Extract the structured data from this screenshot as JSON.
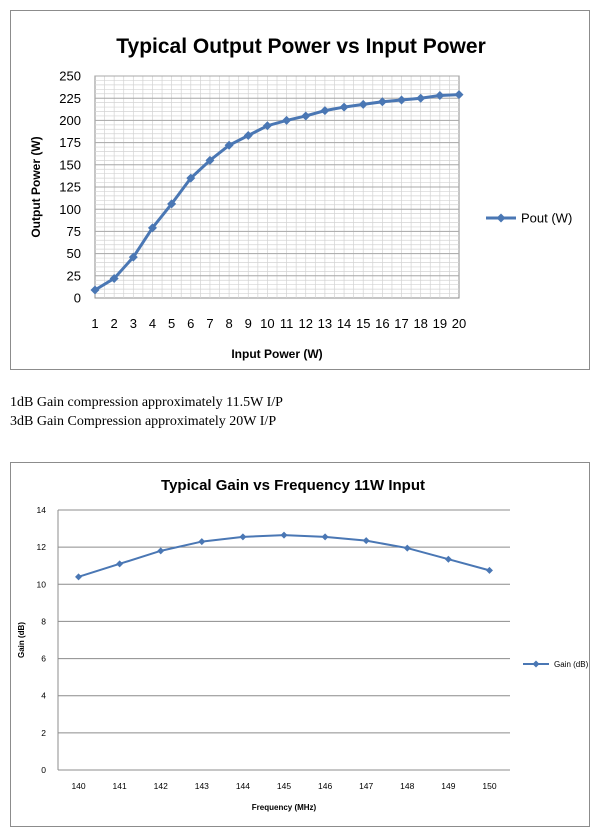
{
  "notes": [
    "1dB Gain compression approximately 11.5W I/P",
    "3dB Gain Compression approximately 20W I/P"
  ],
  "chart_data": [
    {
      "type": "line",
      "title": "Typical Output Power vs Input Power",
      "xlabel": "Input Power (W)",
      "ylabel": "Output Power (W)",
      "x": [
        1,
        2,
        3,
        4,
        5,
        6,
        7,
        8,
        9,
        10,
        11,
        12,
        13,
        14,
        15,
        16,
        17,
        18,
        19,
        20
      ],
      "series": [
        {
          "name": "Pout (W)",
          "values": [
            9,
            22,
            46,
            79,
            106,
            135,
            155,
            172,
            183,
            194,
            200,
            205,
            211,
            215,
            218,
            221,
            223,
            225,
            228,
            229
          ]
        }
      ],
      "ylim": [
        0,
        250
      ],
      "y_ticks": [
        "0",
        "25",
        "50",
        "75",
        "100",
        "125",
        "150",
        "175",
        "200",
        "225",
        "250"
      ],
      "x_ticks": [
        "1",
        "2",
        "3",
        "4",
        "5",
        "6",
        "7",
        "8",
        "9",
        "10",
        "11",
        "12",
        "13",
        "14",
        "15",
        "16",
        "17",
        "18",
        "19",
        "20"
      ],
      "grid": true,
      "legend": "right",
      "color": "#4a77b4"
    },
    {
      "type": "line",
      "title": "Typical Gain vs Frequency 11W Input",
      "xlabel": "Frequency (MHz)",
      "ylabel": "Gain (dB)",
      "x": [
        140,
        141,
        142,
        143,
        144,
        145,
        146,
        147,
        148,
        149,
        150
      ],
      "series": [
        {
          "name": "Gain (dB)",
          "values": [
            10.4,
            11.1,
            11.8,
            12.3,
            12.55,
            12.65,
            12.55,
            12.35,
            11.95,
            11.35,
            10.75
          ]
        }
      ],
      "ylim": [
        0,
        14
      ],
      "y_ticks": [
        "0",
        "2",
        "4",
        "6",
        "8",
        "10",
        "12",
        "14"
      ],
      "x_ticks": [
        "140",
        "141",
        "142",
        "143",
        "144",
        "145",
        "146",
        "147",
        "148",
        "149",
        "150"
      ],
      "grid": true,
      "legend": "right",
      "color": "#4a77b4"
    }
  ]
}
